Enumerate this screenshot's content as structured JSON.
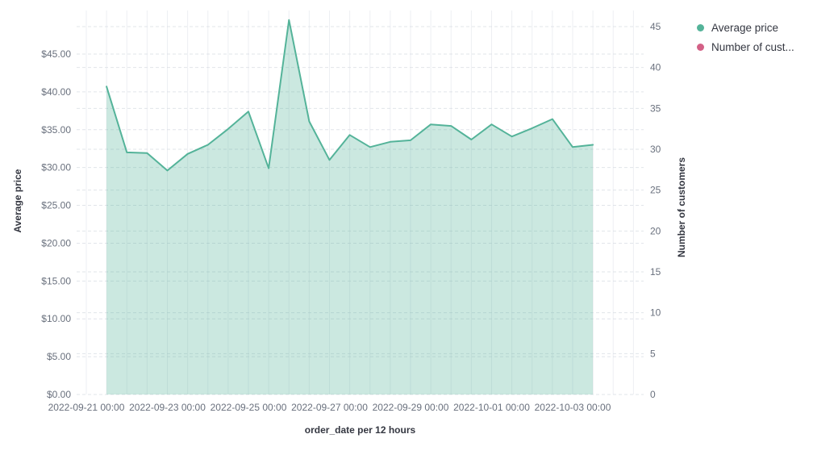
{
  "chart_data": {
    "type": "area",
    "title": "",
    "x_axis": {
      "label": "order_date per 12 hours",
      "tick_labels": [
        "2022-09-21 00:00",
        "2022-09-23 00:00",
        "2022-09-25 00:00",
        "2022-09-27 00:00",
        "2022-09-29 00:00",
        "2022-10-01 00:00",
        "2022-10-03 00:00"
      ]
    },
    "y_axis_left": {
      "label": "Average price",
      "tick_labels": [
        "$0.00",
        "$5.00",
        "$10.00",
        "$15.00",
        "$20.00",
        "$25.00",
        "$30.00",
        "$35.00",
        "$40.00",
        "$45.00"
      ],
      "tick_values": [
        0,
        5,
        10,
        15,
        20,
        25,
        30,
        35,
        40,
        45
      ],
      "range": [
        0,
        50.7
      ]
    },
    "y_axis_right": {
      "label": "Number of customers",
      "tick_labels": [
        "0",
        "5",
        "10",
        "15",
        "20",
        "25",
        "30",
        "35",
        "40",
        "45"
      ],
      "tick_values": [
        0,
        5,
        10,
        15,
        20,
        25,
        30,
        35,
        40,
        45
      ],
      "range": [
        0,
        47
      ]
    },
    "legend": {
      "position": "top-right",
      "items": [
        {
          "label": "Average price",
          "color": "#54B399"
        },
        {
          "label": "Number of cust...",
          "color": "#D36086"
        }
      ]
    },
    "grid": {
      "vertical_lines": true,
      "horizontal_dashed_lines": true
    },
    "series": [
      {
        "name": "Average price",
        "type": "area",
        "color": "#54B399",
        "fill_opacity": 0.3,
        "axis": "left",
        "x": [
          "2022-09-21 12:00",
          "2022-09-22 00:00",
          "2022-09-22 12:00",
          "2022-09-23 00:00",
          "2022-09-23 12:00",
          "2022-09-24 00:00",
          "2022-09-24 12:00",
          "2022-09-25 00:00",
          "2022-09-25 12:00",
          "2022-09-26 00:00",
          "2022-09-26 12:00",
          "2022-09-27 00:00",
          "2022-09-27 12:00",
          "2022-09-28 00:00",
          "2022-09-28 12:00",
          "2022-09-29 00:00",
          "2022-09-29 12:00",
          "2022-09-30 00:00",
          "2022-09-30 12:00",
          "2022-10-01 00:00",
          "2022-10-01 12:00",
          "2022-10-02 00:00",
          "2022-10-02 12:00",
          "2022-10-03 00:00",
          "2022-10-03 12:00"
        ],
        "values": [
          40.7,
          32.0,
          31.9,
          29.6,
          31.8,
          33.0,
          35.1,
          37.4,
          29.9,
          49.5,
          36.1,
          31.0,
          34.3,
          32.7,
          33.4,
          33.6,
          35.7,
          35.5,
          33.7,
          35.7,
          34.1,
          35.2,
          36.4,
          32.7,
          33.0
        ]
      },
      {
        "name": "Number of cust...",
        "type": "line",
        "color": "#D36086",
        "axis": "right",
        "x": [],
        "values": []
      }
    ]
  }
}
